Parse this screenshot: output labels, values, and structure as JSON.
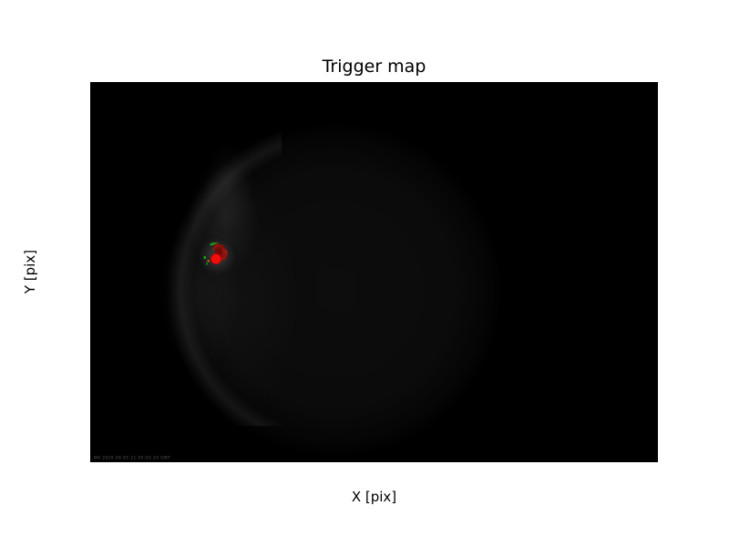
{
  "colors": {
    "figure_bg": "#ffffff",
    "plot_bg": "#000000",
    "text": "#000000",
    "detection_core_red": "#f30c0c",
    "detection_cluster_red": "#8b1010",
    "detection_ring_green": "#1d9a1d",
    "watermark_gray": "#5a5a5a"
  },
  "chart_data": {
    "type": "heatmap",
    "title": "Trigger map",
    "xlabel": "X [pix]",
    "ylabel": "Y [pix]",
    "xlim": [
      0,
      1550
    ],
    "ylim": [
      1045,
      0
    ],
    "y_axis_inverted": true,
    "xticks": [
      0,
      200,
      400,
      600,
      800,
      1000,
      1200,
      1400
    ],
    "yticks": [
      0,
      200,
      400,
      600,
      800,
      1000
    ],
    "grid": false,
    "legend": false,
    "image_content": {
      "description": "Near-black all-sky camera frame; very faint circular field-of-view glow with dim cloud wisps on its left side and a bright trigger detection blob",
      "fov_circle": {
        "cx": 670,
        "cy": 570,
        "radius": 455
      },
      "detection": {
        "x": 346,
        "y": 479,
        "elements": "bright red core, dark-red pixel cluster, broken green ring overlay"
      },
      "watermark": "M4 2020-09-05 21:02:03.20 GMT"
    }
  }
}
